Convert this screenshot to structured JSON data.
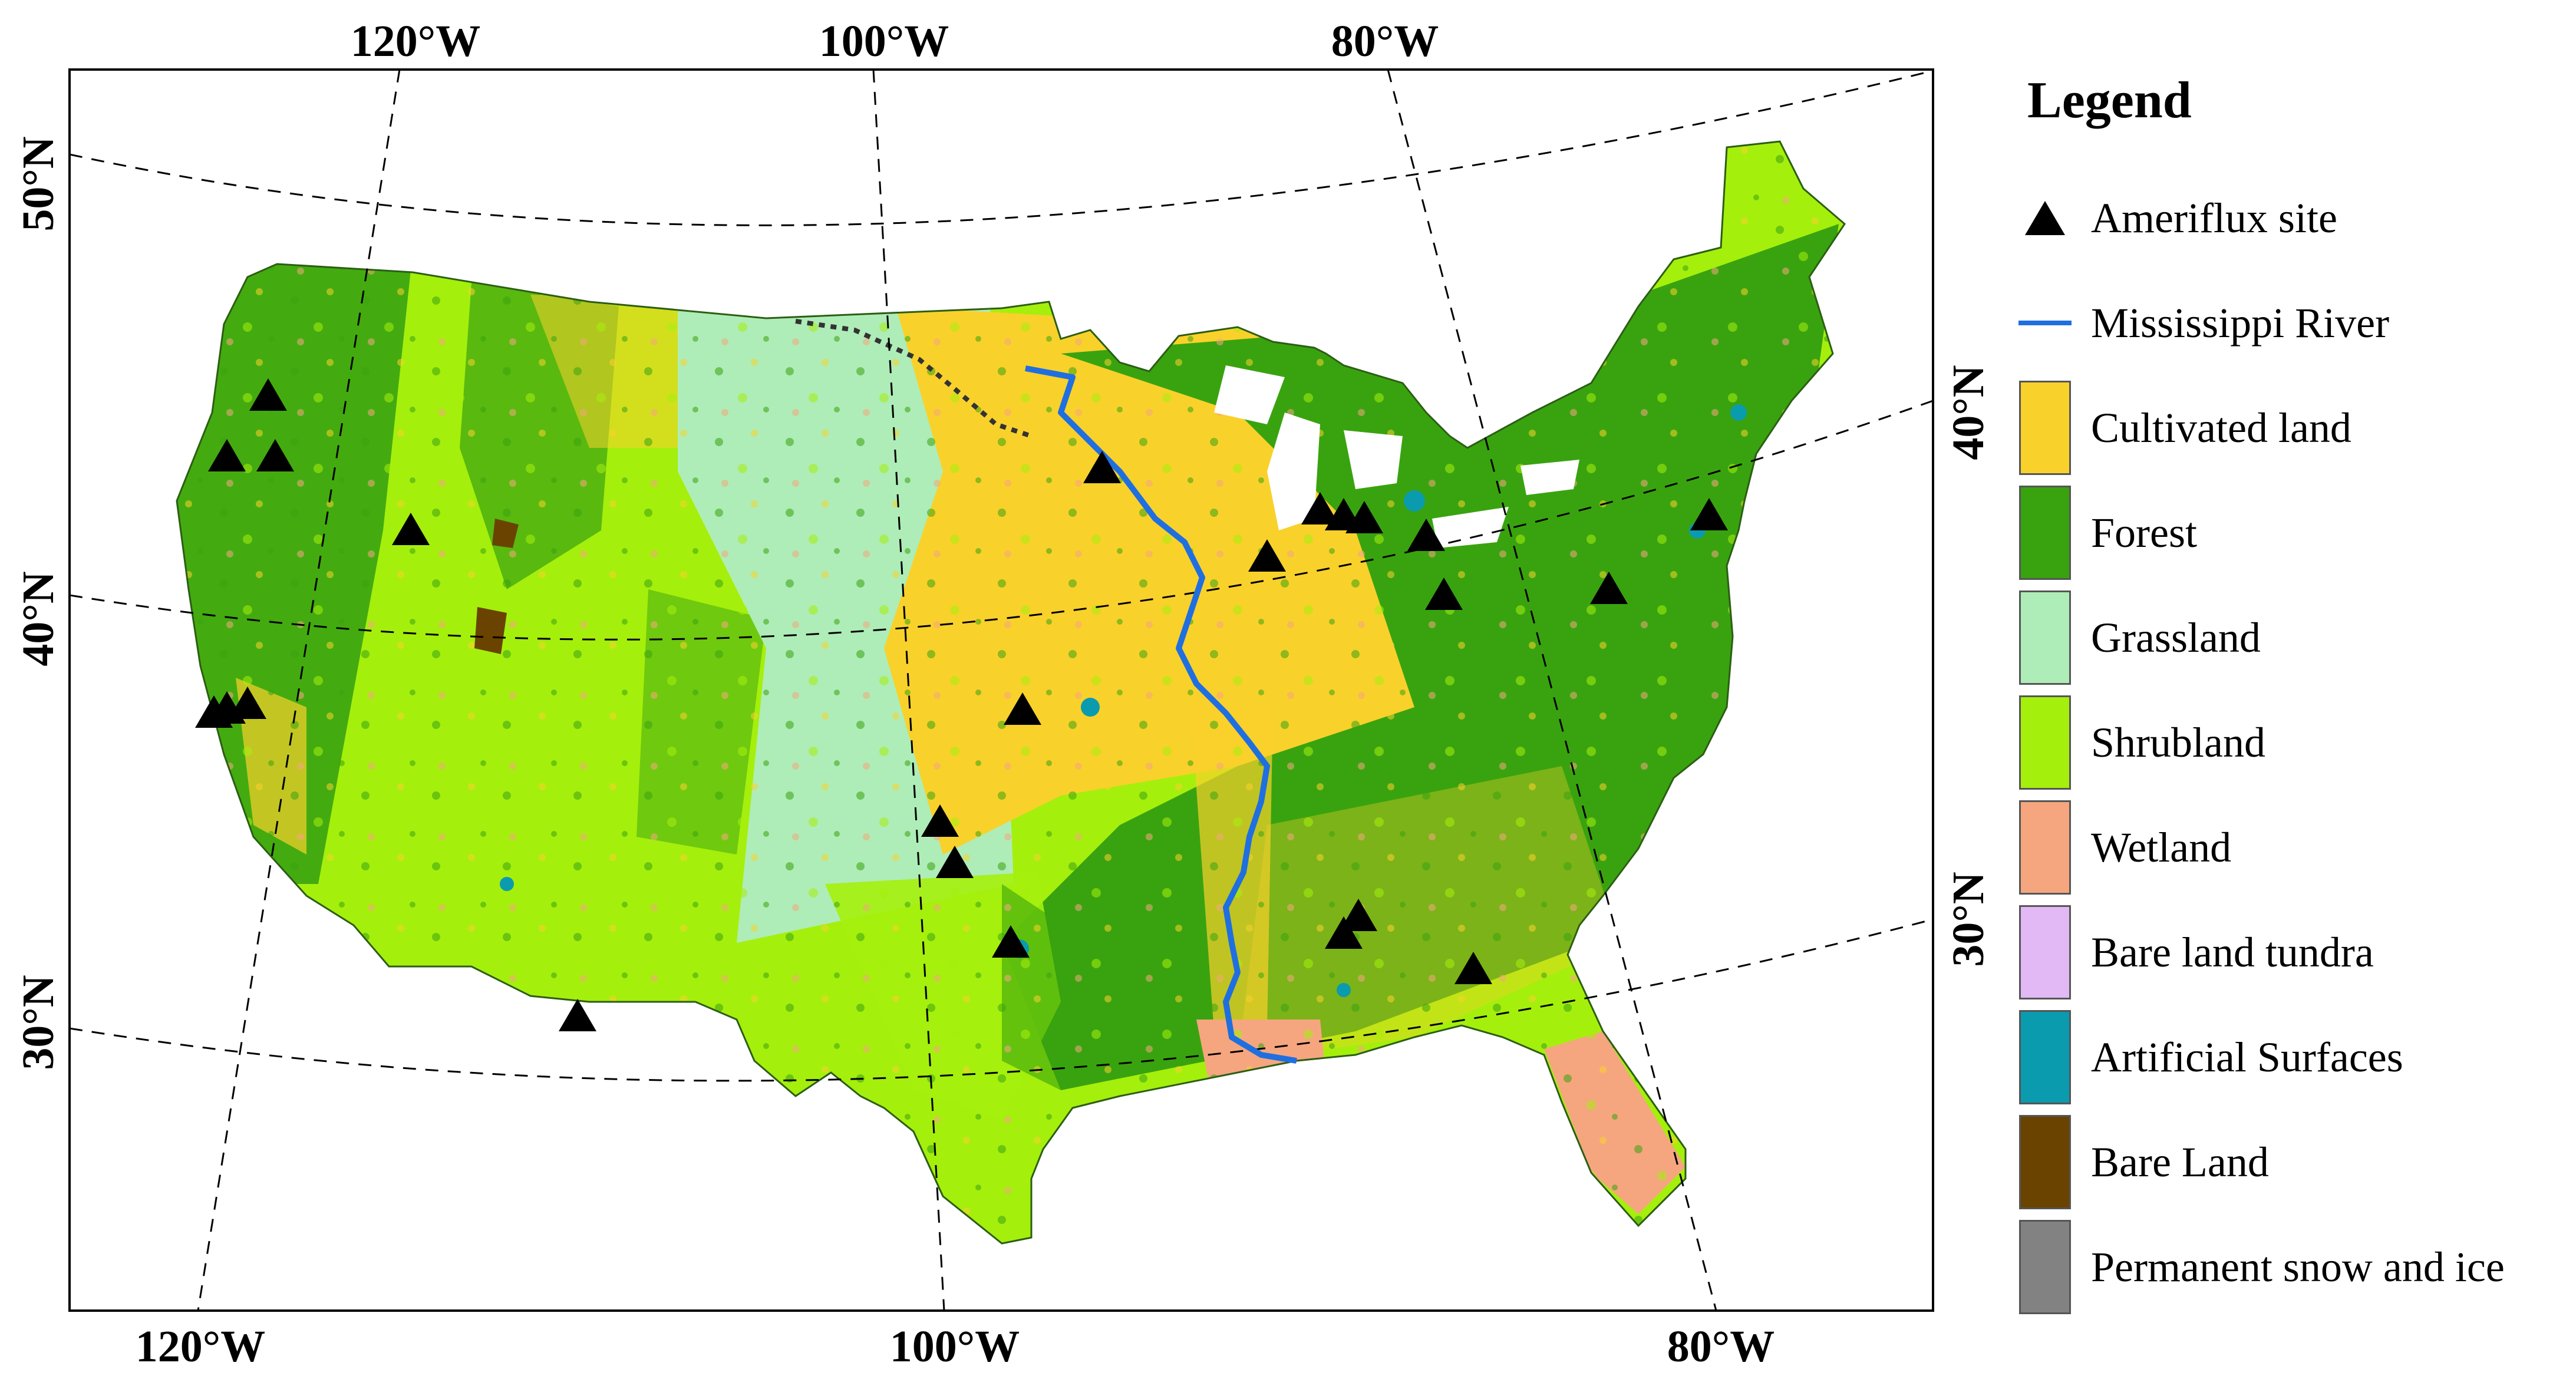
{
  "map": {
    "lon_labels_top": [
      "120°W",
      "100°W",
      "80°W"
    ],
    "lon_labels_bottom": [
      "120°W",
      "100°W",
      "80°W"
    ],
    "lat_labels_left": [
      "50°N",
      "40°N",
      "30°N"
    ],
    "lat_labels_right": [
      "40°N",
      "30°N"
    ],
    "river_color": "#1f6fe0",
    "site_color": "#000000"
  },
  "legend": {
    "title": "Legend",
    "items": [
      {
        "label": "Ameriflux site",
        "kind": "triangle",
        "color": "#000000"
      },
      {
        "label": "Mississippi River",
        "kind": "line",
        "color": "#1f6fe0"
      },
      {
        "label": "Cultivated land",
        "kind": "swatch",
        "color": "#f9d12b"
      },
      {
        "label": "Forest",
        "kind": "swatch",
        "color": "#39a30f"
      },
      {
        "label": "Grassland",
        "kind": "swatch",
        "color": "#aeedb7"
      },
      {
        "label": "Shrubland",
        "kind": "swatch",
        "color": "#a5ef0c"
      },
      {
        "label": "Wetland",
        "kind": "swatch",
        "color": "#f5a67f"
      },
      {
        "label": "Bare land tundra",
        "kind": "swatch",
        "color": "#e2b8f5"
      },
      {
        "label": "Artificial Surfaces",
        "kind": "swatch",
        "color": "#0a9bae"
      },
      {
        "label": "Bare Land",
        "kind": "swatch",
        "color": "#6a4300"
      },
      {
        "label": "Permanent snow and ice",
        "kind": "swatch",
        "color": "#828282"
      }
    ]
  }
}
